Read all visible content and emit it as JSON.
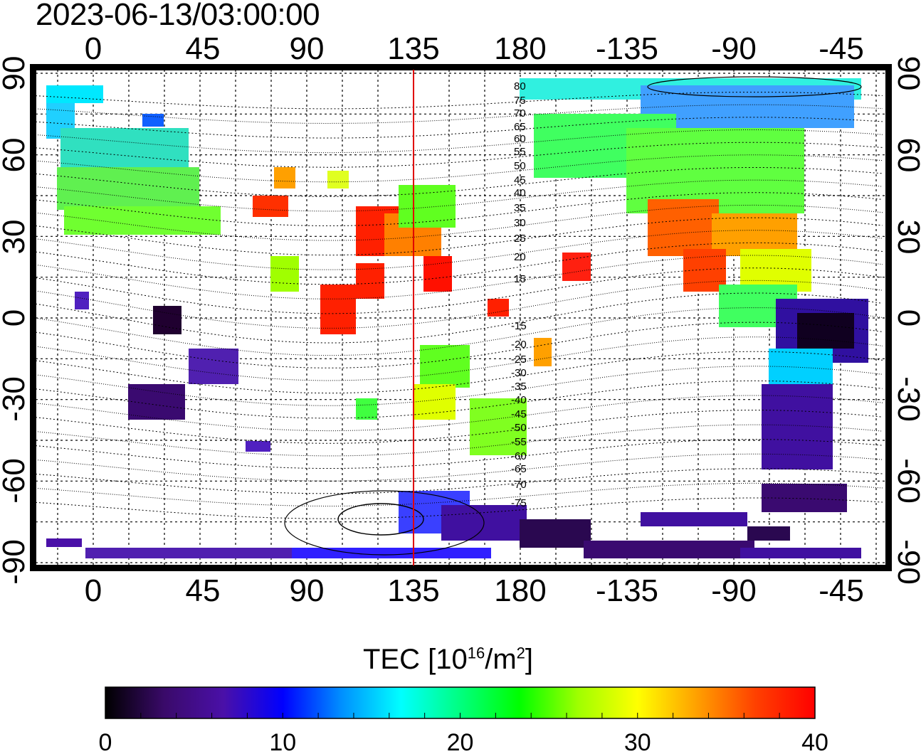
{
  "title": "2023-06-13/03:00:00",
  "top_lon_ticks": [
    "0",
    "45",
    "90",
    "135",
    "180",
    "-135",
    "-90",
    "-45"
  ],
  "bottom_lon_ticks": [
    "0",
    "45",
    "90",
    "135",
    "180",
    "-135",
    "-90",
    "-45"
  ],
  "left_lat_ticks": [
    "90",
    "60",
    "30",
    "0",
    "-30",
    "-60",
    "-90"
  ],
  "right_lat_ticks": [
    "90",
    "60",
    "30",
    "0",
    "-30",
    "-60",
    "-90"
  ],
  "contour_labels": [
    "80",
    "75",
    "70",
    "65",
    "60",
    "55",
    "50",
    "45",
    "40",
    "35",
    "30",
    "25",
    "20",
    "15",
    "-15",
    "-20",
    "-25",
    "-30",
    "-35",
    "-40",
    "-45",
    "-50",
    "-55",
    "-60",
    "-65",
    "-70",
    "-75"
  ],
  "meridian_line_lon": 135,
  "colorbar": {
    "label_main": "TEC  [10",
    "label_sup1": "16",
    "label_mid": "/m",
    "label_sup2": "2",
    "label_end": "]",
    "min": 0,
    "max": 40,
    "tick_labels": [
      "0",
      "10",
      "20",
      "30",
      "40"
    ],
    "colors": [
      "#000000",
      "#3a0a6a",
      "#4a10a8",
      "#0000ff",
      "#0090ff",
      "#00ffff",
      "#00ff80",
      "#00ff00",
      "#a0ff00",
      "#ffff00",
      "#ffa000",
      "#ff4000",
      "#ff0000"
    ]
  }
}
